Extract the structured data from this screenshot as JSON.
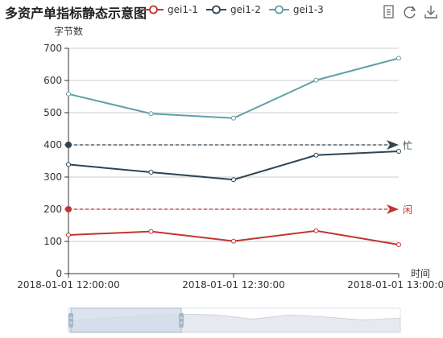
{
  "chart_data": {
    "type": "line",
    "title": "多资产单指标静态示意图",
    "ylabel": "字节数",
    "xlabel": "时间",
    "ylim": [
      0,
      700
    ],
    "y_ticks": [
      0,
      100,
      200,
      300,
      400,
      500,
      600,
      700
    ],
    "x_tick_labels": [
      "2018-01-01 12:00:00",
      "2018-01-01 12:30:00",
      "2018-01-01 13:00:00"
    ],
    "x_range": [
      "2018-01-01 12:00:00",
      "2018-01-01 13:00:00"
    ],
    "x": [
      "2018-01-01 12:00:00",
      "2018-01-01 12:15:00",
      "2018-01-01 12:30:00",
      "2018-01-01 12:45:00",
      "2018-01-01 13:00:00"
    ],
    "grid": true,
    "legend_position": "top",
    "series": [
      {
        "name": "gei1-1",
        "color": "#c23531",
        "values": [
          120,
          131,
          101,
          133,
          90
        ]
      },
      {
        "name": "gei1-2",
        "color": "#2f4554",
        "values": [
          339,
          315,
          292,
          368,
          380
        ]
      },
      {
        "name": "gei1-3",
        "color": "#61a0a8",
        "values": [
          558,
          497,
          483,
          601,
          669
        ]
      }
    ],
    "mark_lines": [
      {
        "label": "忙",
        "value": 400,
        "color": "#2f4554"
      },
      {
        "label": "闲",
        "value": 200,
        "color": "#c23531"
      }
    ],
    "data_zoom": {
      "range_percent": [
        0,
        34
      ]
    }
  },
  "toolbar": {
    "items": [
      {
        "name": "data-view-icon"
      },
      {
        "name": "restore-icon"
      },
      {
        "name": "save-image-icon"
      }
    ]
  },
  "colors": {
    "axis": "#333333",
    "grid": "#cccccc",
    "zoom_fill": "#d3dbea"
  }
}
